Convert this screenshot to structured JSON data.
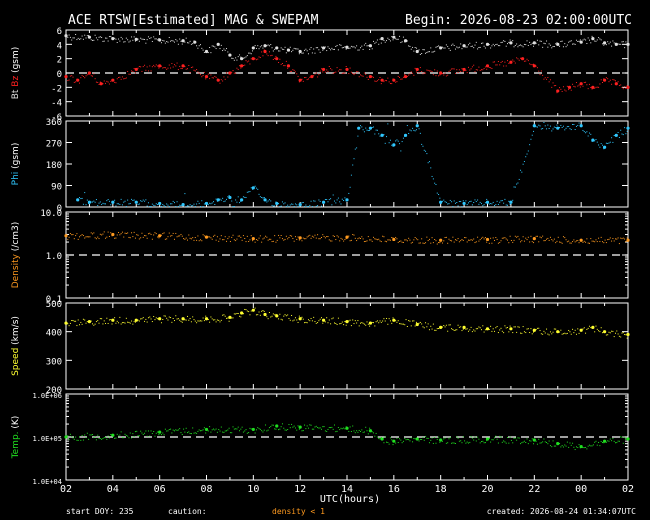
{
  "header": {
    "title": "ACE RTSW[Estimated] MAG & SWEPAM",
    "begin": "Begin: 2026-08-23 02:00:00UTC"
  },
  "footer": {
    "start_doy": "start DOY: 235",
    "caution": "caution:",
    "density_note": "density < 1",
    "created": "created: 2026-08-24 01:34:07UTC"
  },
  "colors": {
    "bt": "#e0e0e0",
    "bz": "#ff2020",
    "phi": "#30c8ff",
    "density": "#ff9a1f",
    "speed": "#ffff30",
    "temp": "#20e020",
    "caution": "#ff9a1f",
    "axes": "#ffffff",
    "background": "#000000"
  },
  "chart_data": {
    "type": "scatter",
    "x_axis": {
      "label": "UTC(hours)",
      "tick_labels": [
        "02",
        "04",
        "06",
        "08",
        "10",
        "12",
        "14",
        "16",
        "18",
        "20",
        "22",
        "00",
        "02"
      ],
      "start_hour": 2,
      "range_hours": [
        0,
        24
      ]
    },
    "panels": [
      {
        "id": "mag",
        "ylabel": "Bt  Bz  (gsm)",
        "ylabel_parts": [
          {
            "text": "Bt",
            "color": "#e0e0e0"
          },
          {
            "text": " Bz",
            "color": "#ff2020"
          },
          {
            "text": " (gsm)",
            "color": "#ffffff"
          }
        ],
        "ylim": [
          -6,
          6
        ],
        "scale": "linear",
        "ticks": [
          6,
          4,
          2,
          0,
          -2,
          -4,
          -6
        ],
        "tick_labels": [
          "6",
          "4",
          "2",
          "0",
          "-2",
          "-4",
          "-6"
        ],
        "reference_line": 0,
        "series": [
          {
            "name": "Bt",
            "color": "#e0e0e0",
            "x": [
              0,
              1,
              2,
              3,
              4,
              5,
              5.5,
              6,
              6.5,
              7,
              7.5,
              8,
              8.5,
              9,
              9.5,
              10,
              11,
              12,
              13,
              13.5,
              14,
              14.5,
              15,
              16,
              17,
              18,
              19,
              20,
              21,
              22,
              22.5,
              23,
              23.5,
              24
            ],
            "y": [
              5.2,
              5.0,
              4.8,
              4.7,
              4.6,
              4.5,
              4.3,
              3.0,
              4.0,
              2.5,
              2.0,
              3.5,
              3.8,
              3.5,
              3.2,
              3.0,
              3.5,
              3.6,
              3.8,
              4.8,
              5.0,
              4.5,
              3.0,
              3.5,
              3.8,
              4.0,
              4.2,
              4.2,
              4.0,
              4.3,
              4.8,
              4.2,
              4.0,
              4.0
            ]
          },
          {
            "name": "Bz",
            "color": "#ff2020",
            "x": [
              0,
              0.5,
              1,
              1.5,
              2,
              3,
              4,
              5,
              6,
              6.5,
              7,
              7.5,
              8,
              8.5,
              9,
              9.5,
              10,
              10.5,
              11,
              12,
              13,
              13.5,
              14,
              14.5,
              15,
              16,
              17,
              18,
              19,
              19.5,
              20,
              21,
              21.5,
              22,
              22.5,
              23,
              23.5,
              24
            ],
            "y": [
              -0.5,
              -1.0,
              0.0,
              -1.5,
              -1.0,
              0.5,
              1.0,
              1.0,
              -0.5,
              -1.0,
              0.0,
              1.0,
              2.0,
              3.0,
              2.0,
              1.0,
              -1.0,
              -0.5,
              0.5,
              0.5,
              -0.5,
              -1.0,
              -1.0,
              -0.5,
              0.5,
              0.0,
              0.5,
              1.0,
              1.5,
              2.0,
              1.0,
              -2.5,
              -2.0,
              -1.5,
              -2.0,
              -1.0,
              -1.5,
              -2.0
            ]
          }
        ]
      },
      {
        "id": "phi",
        "ylabel": "Phi  (gsm)",
        "ylabel_parts": [
          {
            "text": "Phi",
            "color": "#30c8ff"
          },
          {
            "text": " (gsm)",
            "color": "#ffffff"
          }
        ],
        "ylim": [
          0,
          360
        ],
        "scale": "linear",
        "ticks": [
          360,
          270,
          180,
          90,
          0
        ],
        "tick_labels": [
          "360",
          "270",
          "180",
          "90",
          "0"
        ],
        "series": [
          {
            "name": "Phi",
            "color": "#30c8ff",
            "x": [
              0.5,
              1,
              2,
              3,
              4,
              5,
              6,
              6.5,
              7,
              7.5,
              8,
              8.5,
              9,
              10,
              11,
              12,
              12.5,
              13,
              13.5,
              14,
              14.5,
              15,
              16,
              17,
              18,
              19,
              20,
              21,
              22,
              22.5,
              23,
              23.5,
              24
            ],
            "y": [
              30,
              20,
              20,
              20,
              15,
              10,
              15,
              30,
              40,
              30,
              80,
              30,
              15,
              10,
              20,
              30,
              330,
              330,
              300,
              260,
              300,
              340,
              20,
              15,
              20,
              20,
              340,
              330,
              340,
              280,
              250,
              300,
              330
            ]
          }
        ]
      },
      {
        "id": "density",
        "ylabel": "Density  (/cm3)",
        "ylabel_parts": [
          {
            "text": "Density",
            "color": "#ff9a1f"
          },
          {
            "text": " (/cm3)",
            "color": "#ffffff"
          }
        ],
        "ylim": [
          0.1,
          10
        ],
        "scale": "log",
        "ticks": [
          10,
          1,
          0.1
        ],
        "tick_labels": [
          "10.0",
          "1.0",
          "0.1"
        ],
        "reference_line": 1,
        "series": [
          {
            "name": "Density",
            "color": "#ff9a1f",
            "x": [
              0,
              2,
              4,
              6,
              8,
              10,
              12,
              14,
              16,
              18,
              20,
              22,
              24
            ],
            "y": [
              2.8,
              3.0,
              2.8,
              2.6,
              2.4,
              2.5,
              2.6,
              2.3,
              2.2,
              2.3,
              2.4,
              2.2,
              2.2
            ]
          }
        ]
      },
      {
        "id": "speed",
        "ylabel": "Speed  (km/s)",
        "ylabel_parts": [
          {
            "text": "Speed",
            "color": "#ffff30"
          },
          {
            "text": " (km/s)",
            "color": "#ffffff"
          }
        ],
        "ylim": [
          200,
          500
        ],
        "scale": "linear",
        "ticks": [
          500,
          400,
          300,
          200
        ],
        "tick_labels": [
          "500",
          "400",
          "300",
          "200"
        ],
        "series": [
          {
            "name": "Speed",
            "color": "#ffff30",
            "x": [
              0,
              1,
              2,
              3,
              4,
              5,
              6,
              7,
              7.5,
              8,
              8.5,
              9,
              10,
              11,
              12,
              13,
              14,
              15,
              16,
              17,
              18,
              19,
              20,
              21,
              22,
              22.5,
              23,
              24
            ],
            "y": [
              430,
              435,
              440,
              440,
              445,
              445,
              445,
              450,
              465,
              475,
              460,
              455,
              445,
              440,
              435,
              430,
              440,
              425,
              415,
              415,
              410,
              410,
              405,
              400,
              405,
              415,
              400,
              390
            ]
          }
        ]
      },
      {
        "id": "temp",
        "ylabel": "Temp.  (K)",
        "ylabel_parts": [
          {
            "text": "Temp.",
            "color": "#20e020"
          },
          {
            "text": " (K)",
            "color": "#ffffff"
          }
        ],
        "ylim": [
          10000,
          1000000
        ],
        "scale": "log",
        "ticks": [
          1000000,
          100000,
          10000
        ],
        "tick_labels": [
          "1.0E+06",
          "1.0E+05",
          "1.0E+04"
        ],
        "reference_line": 100000,
        "series": [
          {
            "name": "Temp",
            "color": "#20e020",
            "x": [
              0,
              2,
              4,
              6,
              8,
              9,
              10,
              12,
              13,
              13.5,
              14,
              15,
              16,
              18,
              20,
              21,
              22,
              23,
              24
            ],
            "y": [
              100000,
              110000,
              130000,
              150000,
              150000,
              180000,
              170000,
              160000,
              140000,
              90000,
              80000,
              90000,
              85000,
              90000,
              85000,
              70000,
              60000,
              80000,
              90000
            ]
          }
        ]
      }
    ]
  }
}
